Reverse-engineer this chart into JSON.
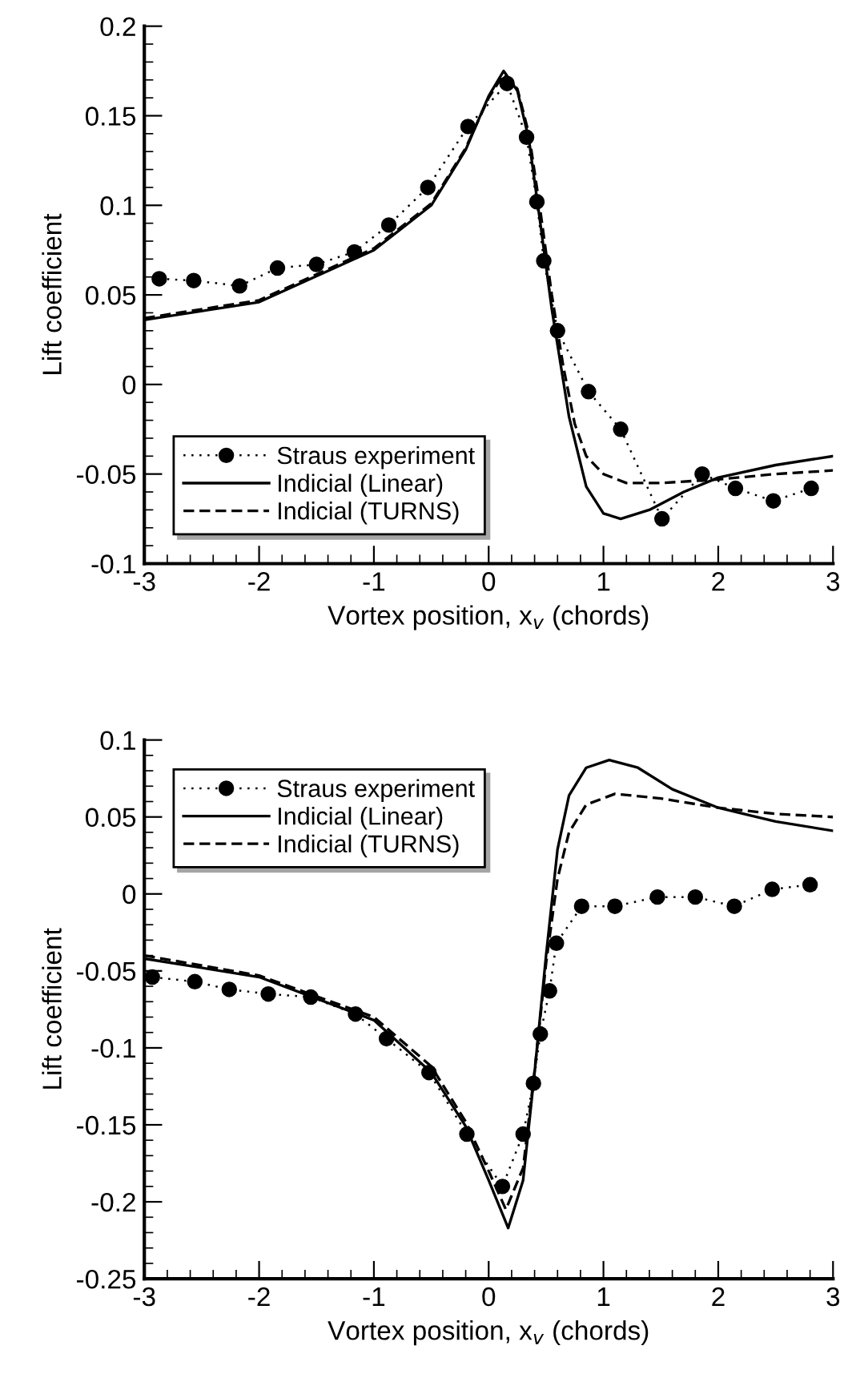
{
  "chart_data": [
    {
      "type": "line",
      "xlabel": "Vortex position, x$_{v}$ (chords)",
      "ylabel": "Lift coefficient",
      "xlim": [
        -3,
        3
      ],
      "ylim": [
        -0.1,
        0.2
      ],
      "xticks": [
        -3,
        -2,
        -1,
        0,
        1,
        2,
        3
      ],
      "yticks": [
        -0.1,
        -0.05,
        0,
        0.05,
        0.1,
        0.15,
        0.2
      ],
      "grid": false,
      "legend": "bottom left",
      "series": [
        {
          "name": "Straus experiment",
          "color": "#000000",
          "marker": "circle",
          "line_style": "dotted",
          "x": [
            -2.87,
            -2.57,
            -2.17,
            -1.84,
            -1.5,
            -1.17,
            -0.87,
            -0.53,
            -0.18,
            0.16,
            0.33,
            0.42,
            0.48,
            0.6,
            0.87,
            1.15,
            1.51,
            1.86,
            2.15,
            2.48,
            2.81
          ],
          "values": [
            0.059,
            0.058,
            0.055,
            0.065,
            0.067,
            0.074,
            0.089,
            0.11,
            0.144,
            0.168,
            0.138,
            0.102,
            0.069,
            0.03,
            -0.004,
            -0.025,
            -0.075,
            -0.05,
            -0.058,
            -0.065,
            -0.058
          ]
        },
        {
          "name": "Indicial (Linear)",
          "color": "#000000",
          "marker": "none",
          "line_style": "solid",
          "x": [
            -3,
            -2,
            -1,
            -0.5,
            -0.2,
            0,
            0.13,
            0.25,
            0.35,
            0.45,
            0.55,
            0.7,
            0.85,
            1.0,
            1.15,
            1.4,
            1.7,
            2.0,
            2.5,
            3.0
          ],
          "values": [
            0.036,
            0.046,
            0.075,
            0.1,
            0.131,
            0.161,
            0.175,
            0.164,
            0.137,
            0.09,
            0.042,
            -0.018,
            -0.057,
            -0.072,
            -0.075,
            -0.07,
            -0.06,
            -0.052,
            -0.045,
            -0.04
          ]
        },
        {
          "name": "Indicial (TURNS)",
          "color": "#000000",
          "marker": "none",
          "line_style": "dashed",
          "x": [
            -3,
            -2,
            -1,
            -0.5,
            -0.2,
            0,
            0.13,
            0.25,
            0.35,
            0.45,
            0.55,
            0.65,
            0.75,
            0.85,
            1.0,
            1.2,
            1.5,
            2.0,
            2.5,
            3.0
          ],
          "values": [
            0.037,
            0.047,
            0.076,
            0.101,
            0.132,
            0.16,
            0.173,
            0.165,
            0.14,
            0.097,
            0.05,
            0.01,
            -0.022,
            -0.04,
            -0.05,
            -0.055,
            -0.055,
            -0.053,
            -0.05,
            -0.048
          ]
        }
      ]
    },
    {
      "type": "line",
      "xlabel": "Vortex position, x$_{v}$ (chords)",
      "ylabel": "Lift coefficient",
      "xlim": [
        -3,
        3
      ],
      "ylim": [
        -0.25,
        0.1
      ],
      "xticks": [
        -3,
        -2,
        -1,
        0,
        1,
        2,
        3
      ],
      "yticks": [
        -0.25,
        -0.2,
        -0.15,
        -0.1,
        -0.05,
        0,
        0.05,
        0.1
      ],
      "grid": false,
      "legend": "top left",
      "series": [
        {
          "name": "Straus experiment",
          "color": "#000000",
          "marker": "circle",
          "line_style": "dotted",
          "x": [
            -2.93,
            -2.56,
            -2.26,
            -1.92,
            -1.55,
            -1.16,
            -0.89,
            -0.52,
            -0.19,
            0.12,
            0.3,
            0.39,
            0.45,
            0.53,
            0.59,
            0.81,
            1.1,
            1.47,
            1.8,
            2.14,
            2.47,
            2.8
          ],
          "values": [
            -0.054,
            -0.057,
            -0.062,
            -0.065,
            -0.067,
            -0.078,
            -0.094,
            -0.116,
            -0.156,
            -0.19,
            -0.156,
            -0.123,
            -0.091,
            -0.063,
            -0.032,
            -0.008,
            -0.008,
            -0.002,
            -0.002,
            -0.008,
            0.003,
            0.006
          ]
        },
        {
          "name": "Indicial (Linear)",
          "color": "#000000",
          "marker": "none",
          "line_style": "solid",
          "x": [
            -3,
            -2,
            -1,
            -0.5,
            -0.2,
            0,
            0.17,
            0.3,
            0.4,
            0.5,
            0.6,
            0.7,
            0.85,
            1.05,
            1.3,
            1.6,
            2.0,
            2.5,
            3.0
          ],
          "values": [
            -0.042,
            -0.054,
            -0.082,
            -0.116,
            -0.151,
            -0.186,
            -0.217,
            -0.186,
            -0.116,
            -0.04,
            0.029,
            0.064,
            0.082,
            0.087,
            0.082,
            0.068,
            0.056,
            0.047,
            0.041
          ]
        },
        {
          "name": "Indicial (TURNS)",
          "color": "#000000",
          "marker": "none",
          "line_style": "dashed",
          "x": [
            -3,
            -2,
            -1,
            -0.5,
            -0.2,
            0,
            0.15,
            0.3,
            0.4,
            0.5,
            0.6,
            0.7,
            0.85,
            1.1,
            1.5,
            2.0,
            2.5,
            3.0
          ],
          "values": [
            -0.04,
            -0.053,
            -0.08,
            -0.112,
            -0.148,
            -0.18,
            -0.205,
            -0.178,
            -0.115,
            -0.045,
            0.01,
            0.04,
            0.058,
            0.065,
            0.062,
            0.056,
            0.052,
            0.05
          ]
        }
      ]
    }
  ]
}
